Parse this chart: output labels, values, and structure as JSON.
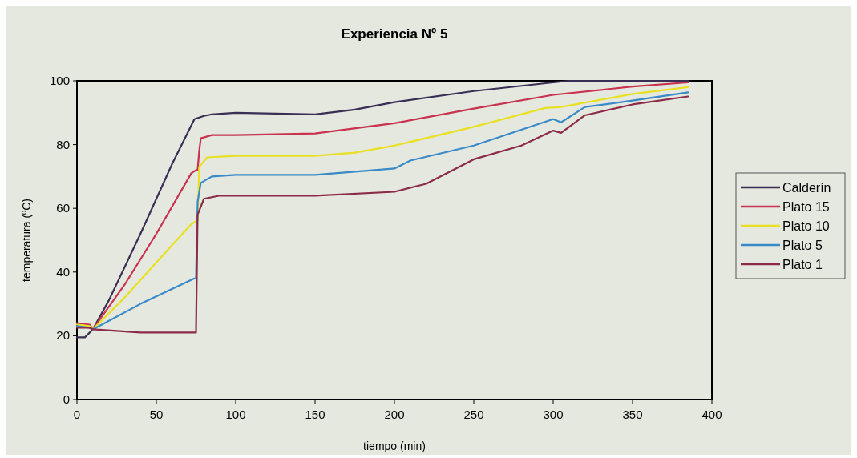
{
  "chart_data": {
    "type": "line",
    "title": "Experiencia Nº 5",
    "xlabel": "tiempo (min)",
    "ylabel": "temperatura (ºC)",
    "xlim": [
      0,
      400
    ],
    "xticks": [
      0,
      50,
      100,
      150,
      200,
      250,
      300,
      350,
      400
    ],
    "ylim": [
      0,
      100
    ],
    "yticks": [
      0,
      20,
      40,
      60,
      80,
      100
    ],
    "grid": false,
    "legend": "right",
    "line_style": "solid",
    "series": [
      {
        "name": "Calderín",
        "color": "#3a2e55",
        "x": [
          0,
          5,
          10,
          20,
          40,
          60,
          74,
          80,
          85,
          100,
          150,
          175,
          200,
          250,
          300,
          310,
          350,
          385
        ],
        "values": [
          19.5,
          19.5,
          22,
          31,
          52,
          74,
          88,
          89,
          89.5,
          90,
          89.5,
          91,
          93.3,
          96.8,
          99.5,
          100,
          100,
          100
        ]
      },
      {
        "name": "Plato 15",
        "color": "#c8324f",
        "x": [
          0,
          8,
          10,
          30,
          50,
          72,
          75,
          76,
          77,
          78,
          85,
          100,
          150,
          200,
          250,
          300,
          350,
          385
        ],
        "values": [
          24,
          23.5,
          22,
          36,
          52,
          71,
          72,
          72,
          78,
          82,
          83,
          83,
          83.5,
          86.7,
          91.3,
          95.6,
          98.2,
          99.5
        ]
      },
      {
        "name": "Plato 10",
        "color": "#e8e020",
        "x": [
          0,
          8,
          10,
          30,
          50,
          72,
          75,
          76,
          77,
          82,
          100,
          150,
          175,
          200,
          250,
          295,
          305,
          350,
          385
        ],
        "values": [
          23.5,
          23,
          22,
          32,
          43,
          55,
          56,
          56,
          73,
          76,
          76.5,
          76.5,
          77.5,
          79.7,
          85.6,
          91.5,
          91.8,
          95.9,
          98
        ]
      },
      {
        "name": "Plato 5",
        "color": "#3a8ac8",
        "x": [
          0,
          8,
          10,
          40,
          74,
          75,
          76,
          78,
          85,
          100,
          150,
          200,
          210,
          250,
          300,
          305,
          320,
          350,
          385
        ],
        "values": [
          23,
          22.5,
          22,
          30,
          38,
          38,
          62,
          68,
          70,
          70.5,
          70.5,
          72.5,
          75,
          79.7,
          88,
          87,
          91.8,
          93.8,
          96.4
        ]
      },
      {
        "name": "Plato 1",
        "color": "#8c2a48",
        "x": [
          0,
          8,
          10,
          40,
          74,
          75,
          76,
          80,
          90,
          150,
          200,
          220,
          250,
          280,
          300,
          305,
          320,
          350,
          385
        ],
        "values": [
          22.5,
          22.5,
          22,
          21,
          21,
          21,
          58,
          63,
          64,
          64,
          65.2,
          67.7,
          75.4,
          79.7,
          84.4,
          83.7,
          89.2,
          92.6,
          95.1
        ]
      }
    ]
  }
}
